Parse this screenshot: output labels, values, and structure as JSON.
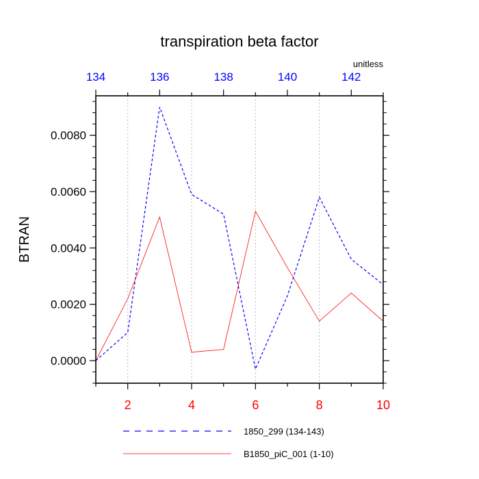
{
  "chart_data": {
    "type": "line",
    "title": "transpiration beta factor",
    "units_label": "unitless",
    "ylabel": "BTRAN",
    "xlabel": "",
    "ylim": [
      -0.0008,
      0.0094
    ],
    "yticks": [
      "0.0000",
      "0.0020",
      "0.0040",
      "0.0060",
      "0.0080"
    ],
    "grid": "vertical dotted lines at bottom-axis ticks",
    "bottom_axis": {
      "color": "#ff0000",
      "range": [
        1,
        10
      ],
      "ticks": [
        "2",
        "4",
        "6",
        "8",
        "10"
      ]
    },
    "top_axis": {
      "color": "#0000ff",
      "range": [
        134,
        143
      ],
      "ticks": [
        "134",
        "136",
        "138",
        "140",
        "142"
      ]
    },
    "series": [
      {
        "name": "1850_299 (134-143)",
        "color": "#0000ff",
        "style": "dashed",
        "axis": "top",
        "x": [
          134,
          135,
          136,
          137,
          138,
          139,
          140,
          141,
          142,
          143
        ],
        "values": [
          0.0,
          0.001,
          0.009,
          0.0059,
          0.0052,
          -0.0003,
          0.0023,
          0.0058,
          0.0036,
          0.0027
        ]
      },
      {
        "name": "B1850_piC_001 (1-10)",
        "color": "#ff0000",
        "style": "solid",
        "axis": "bottom",
        "x": [
          1,
          2,
          3,
          4,
          5,
          6,
          7,
          8,
          9,
          10
        ],
        "values": [
          0.0,
          0.0022,
          0.0051,
          0.0003,
          0.0004,
          0.0053,
          0.0033,
          0.0014,
          0.0024,
          0.0014
        ]
      }
    ],
    "legend_placement": "below plot"
  }
}
